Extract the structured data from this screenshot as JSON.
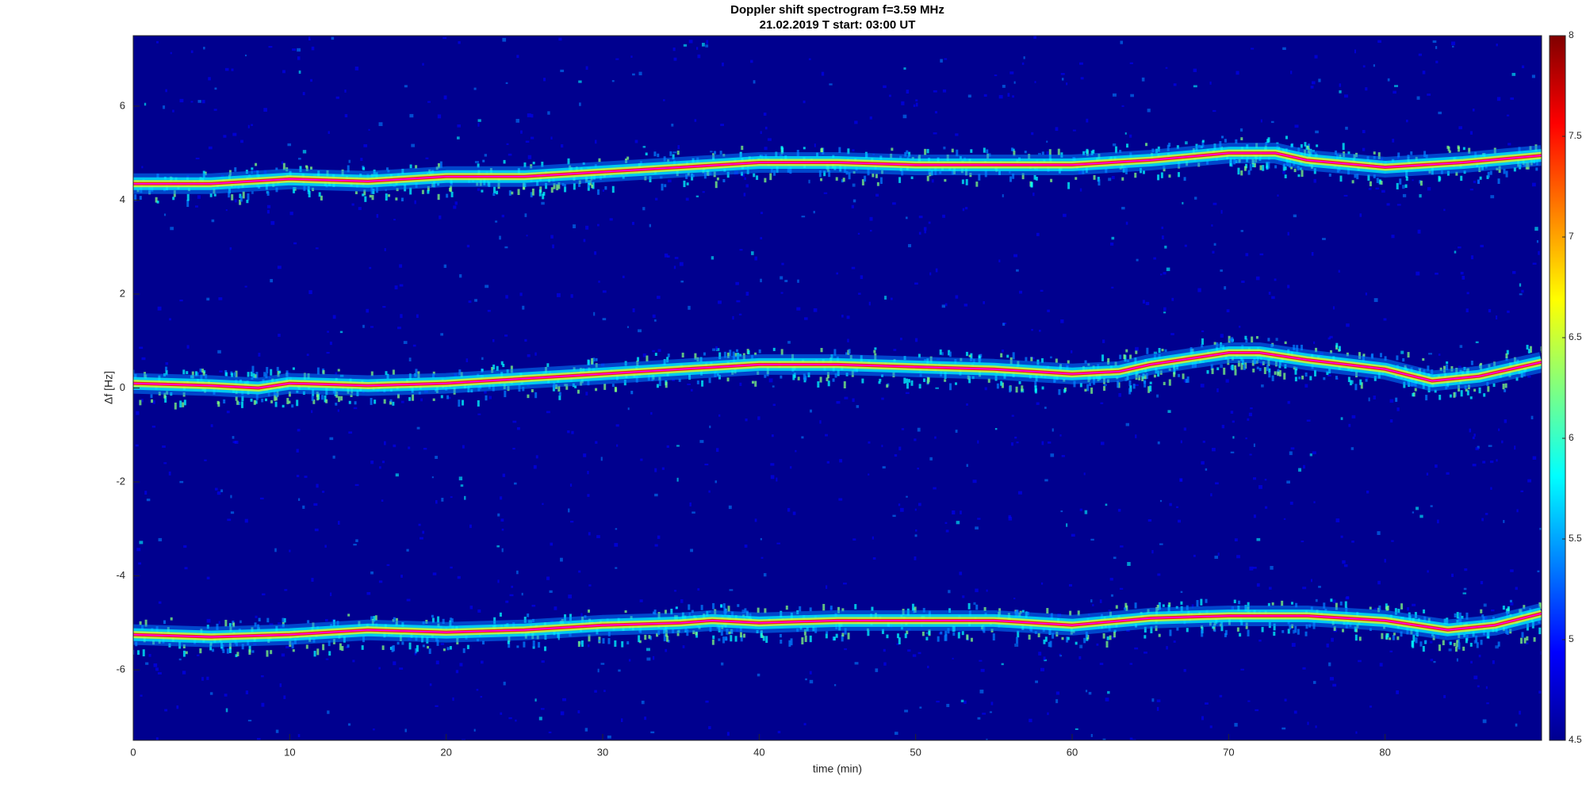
{
  "chart_data": {
    "type": "spectrogram",
    "title": "Doppler shift spectrogram f=3.59 MHz",
    "subtitle": "21.02.2019   T start: 03:00 UT",
    "x_label": "time (min)",
    "y_label": "Δf [Hz]",
    "xlim": [
      0,
      90
    ],
    "xticks": [
      0,
      10,
      20,
      30,
      40,
      50,
      60,
      70,
      80
    ],
    "ylim": [
      -7.5,
      7.5
    ],
    "yticks": [
      -6,
      -4,
      -2,
      0,
      2,
      4,
      6
    ],
    "background": "#00008f",
    "series": [
      {
        "color": "#ff00ff",
        "x": [
          0,
          5,
          10,
          15,
          20,
          25,
          30,
          35,
          40,
          45,
          50,
          55,
          60,
          65,
          70,
          73,
          75,
          80,
          85,
          90
        ],
        "values": [
          4.35,
          4.35,
          4.45,
          4.4,
          4.5,
          4.5,
          4.6,
          4.7,
          4.8,
          4.8,
          4.75,
          4.75,
          4.75,
          4.85,
          5.0,
          5.0,
          4.85,
          4.7,
          4.8,
          4.95
        ]
      },
      {
        "color": "#ff00ff",
        "x": [
          0,
          5,
          8,
          10,
          15,
          20,
          25,
          30,
          35,
          40,
          45,
          50,
          55,
          60,
          63,
          65,
          70,
          72,
          75,
          80,
          83,
          86,
          90
        ],
        "values": [
          0.1,
          0.05,
          0.0,
          0.1,
          0.05,
          0.1,
          0.2,
          0.3,
          0.4,
          0.5,
          0.5,
          0.45,
          0.4,
          0.3,
          0.35,
          0.5,
          0.75,
          0.75,
          0.6,
          0.4,
          0.15,
          0.25,
          0.55
        ]
      },
      {
        "color": "#ff00ff",
        "x": [
          0,
          5,
          10,
          15,
          20,
          25,
          30,
          35,
          37,
          40,
          45,
          50,
          55,
          60,
          65,
          70,
          75,
          80,
          84,
          87,
          90
        ],
        "values": [
          -5.25,
          -5.3,
          -5.25,
          -5.15,
          -5.2,
          -5.15,
          -5.05,
          -5.0,
          -4.95,
          -5.0,
          -4.95,
          -4.95,
          -4.95,
          -5.05,
          -4.9,
          -4.85,
          -4.85,
          -4.95,
          -5.15,
          -5.05,
          -4.8
        ]
      }
    ],
    "colorbar": {
      "lim": [
        4.5,
        8
      ],
      "ticks": [
        4.5,
        5,
        5.5,
        6,
        6.5,
        7,
        7.5,
        8
      ],
      "colormap": [
        "#00008f",
        "#0000ff",
        "#0080ff",
        "#00ffff",
        "#80ff80",
        "#ffff00",
        "#ff8000",
        "#ff0000",
        "#800000"
      ]
    }
  }
}
